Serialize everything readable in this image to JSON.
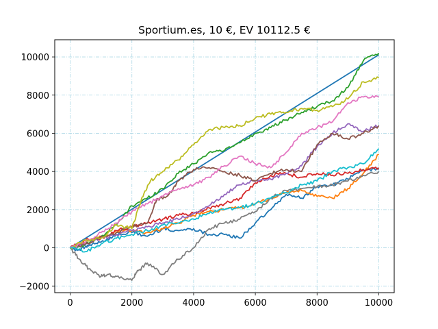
{
  "chart_data": {
    "type": "line",
    "title": "Sportium.es, 10 €, EV 10112.5 €",
    "xlabel": "",
    "ylabel": "",
    "xlim": [
      -500,
      10500
    ],
    "ylim": [
      -2350,
      10900
    ],
    "xticks": [
      0,
      2000,
      4000,
      6000,
      8000,
      10000
    ],
    "xtick_labels": [
      "0",
      "2000",
      "4000",
      "6000",
      "8000",
      "10000"
    ],
    "yticks": [
      -2000,
      0,
      2000,
      4000,
      6000,
      8000,
      10000
    ],
    "ytick_labels": [
      "−2000",
      "0",
      "2000",
      "4000",
      "6000",
      "8000",
      "10000"
    ],
    "grid": true,
    "grid_style": "dash-dot",
    "grid_color": "#add8e6",
    "legend": "none",
    "series": [
      {
        "color": "#1f77b4",
        "x": [
          0,
          10000
        ],
        "y": [
          0,
          10112.5
        ]
      },
      {
        "color": "#1f77b4",
        "x": [
          0,
          300,
          600,
          1000,
          1500,
          2000,
          2500,
          3000,
          3500,
          4000,
          4500,
          5000,
          5500,
          6000,
          6500,
          7000,
          7500,
          8000,
          8500,
          9000,
          9500,
          10000
        ],
        "y": [
          0,
          -100,
          100,
          300,
          700,
          800,
          600,
          1000,
          900,
          1000,
          700,
          700,
          500,
          1300,
          2000,
          2800,
          2600,
          3200,
          3300,
          3600,
          4100,
          4100
        ]
      },
      {
        "color": "#ff7f0e",
        "x": [
          0,
          500,
          1000,
          1500,
          2000,
          2500,
          3000,
          3500,
          4000,
          4500,
          5000,
          5500,
          6000,
          6500,
          7000,
          7500,
          8000,
          8500,
          9000,
          9500,
          10000
        ],
        "y": [
          0,
          300,
          600,
          800,
          900,
          800,
          1000,
          1300,
          1700,
          1900,
          2000,
          2100,
          2300,
          2600,
          2900,
          3000,
          2700,
          2600,
          3100,
          3900,
          4900
        ]
      },
      {
        "color": "#2ca02c",
        "x": [
          0,
          500,
          1000,
          1500,
          2000,
          2500,
          3000,
          3500,
          4000,
          4500,
          5000,
          5500,
          6000,
          6500,
          7000,
          7500,
          8000,
          8500,
          9000,
          9500,
          10000
        ],
        "y": [
          0,
          200,
          600,
          1200,
          2200,
          2600,
          3100,
          3900,
          4400,
          5000,
          5100,
          5500,
          6000,
          6300,
          6700,
          7100,
          7400,
          7700,
          8400,
          9800,
          10200
        ]
      },
      {
        "color": "#d62728",
        "x": [
          0,
          500,
          1000,
          1500,
          2000,
          2500,
          3000,
          3500,
          4000,
          4500,
          5000,
          5500,
          6000,
          6500,
          7000,
          7500,
          8000,
          8500,
          9000,
          9500,
          10000
        ],
        "y": [
          0,
          400,
          500,
          900,
          1100,
          1300,
          1500,
          1700,
          1800,
          2100,
          2300,
          2600,
          3400,
          3800,
          3900,
          3700,
          3900,
          3800,
          3900,
          4100,
          4200
        ]
      },
      {
        "color": "#9467bd",
        "x": [
          0,
          500,
          1000,
          1500,
          2000,
          2500,
          3000,
          3500,
          4000,
          4500,
          5000,
          5500,
          6000,
          6500,
          7000,
          7500,
          8000,
          8500,
          9000,
          9500,
          10000
        ],
        "y": [
          0,
          200,
          500,
          700,
          900,
          1100,
          1300,
          1500,
          1800,
          2200,
          2800,
          3300,
          3500,
          3600,
          3900,
          4300,
          5300,
          6000,
          6500,
          6100,
          6400
        ]
      },
      {
        "color": "#8c564b",
        "x": [
          0,
          500,
          1000,
          1500,
          2000,
          2500,
          2800,
          3200,
          3500,
          4000,
          4500,
          5000,
          5500,
          6000,
          6500,
          7000,
          7500,
          8000,
          8500,
          9000,
          9500,
          10000
        ],
        "y": [
          0,
          200,
          600,
          800,
          1100,
          1300,
          2500,
          2800,
          3500,
          4100,
          4200,
          4000,
          3800,
          3500,
          3900,
          4100,
          4000,
          5400,
          6000,
          5700,
          6000,
          6400
        ]
      },
      {
        "color": "#e377c2",
        "x": [
          0,
          500,
          1000,
          1500,
          2000,
          2500,
          3000,
          3500,
          4000,
          4500,
          5000,
          5500,
          6000,
          6500,
          7000,
          7500,
          8000,
          8500,
          9000,
          9500,
          10000
        ],
        "y": [
          0,
          300,
          800,
          1300,
          1900,
          2300,
          2700,
          3100,
          3300,
          3700,
          4300,
          4800,
          4400,
          4200,
          5000,
          6000,
          6300,
          6600,
          7600,
          7900,
          7900
        ]
      },
      {
        "color": "#7f7f7f",
        "x": [
          0,
          300,
          600,
          1000,
          1200,
          1500,
          2000,
          2200,
          2500,
          3000,
          3500,
          4000,
          4500,
          5000,
          5500,
          6000,
          6500,
          7000,
          7500,
          8000,
          8500,
          9000,
          9500,
          10000
        ],
        "y": [
          0,
          -600,
          -1100,
          -1500,
          -1400,
          -1500,
          -1700,
          -1200,
          -800,
          -1400,
          -600,
          0,
          1000,
          1300,
          1500,
          1900,
          2600,
          3000,
          3100,
          3200,
          3300,
          3500,
          3800,
          4000
        ]
      },
      {
        "color": "#bcbd22",
        "x": [
          0,
          500,
          1000,
          1500,
          2000,
          2300,
          2600,
          3000,
          3500,
          4000,
          4500,
          5000,
          5500,
          6000,
          6500,
          7000,
          7500,
          8000,
          8500,
          9000,
          9500,
          10000
        ],
        "y": [
          0,
          400,
          500,
          1200,
          1000,
          2500,
          3500,
          4000,
          4600,
          5400,
          6200,
          6300,
          6400,
          6800,
          7000,
          7100,
          7300,
          7200,
          7400,
          7800,
          8700,
          8900
        ]
      },
      {
        "color": "#17becf",
        "x": [
          0,
          500,
          1000,
          1500,
          2000,
          2500,
          3000,
          3500,
          4000,
          4500,
          5000,
          5500,
          6000,
          6500,
          7000,
          7500,
          8000,
          8500,
          9000,
          9500,
          10000
        ],
        "y": [
          0,
          -200,
          200,
          500,
          700,
          900,
          1200,
          1300,
          1500,
          1800,
          2000,
          2100,
          2300,
          2600,
          2900,
          3300,
          3500,
          4000,
          4200,
          4400,
          5200
        ]
      }
    ]
  }
}
